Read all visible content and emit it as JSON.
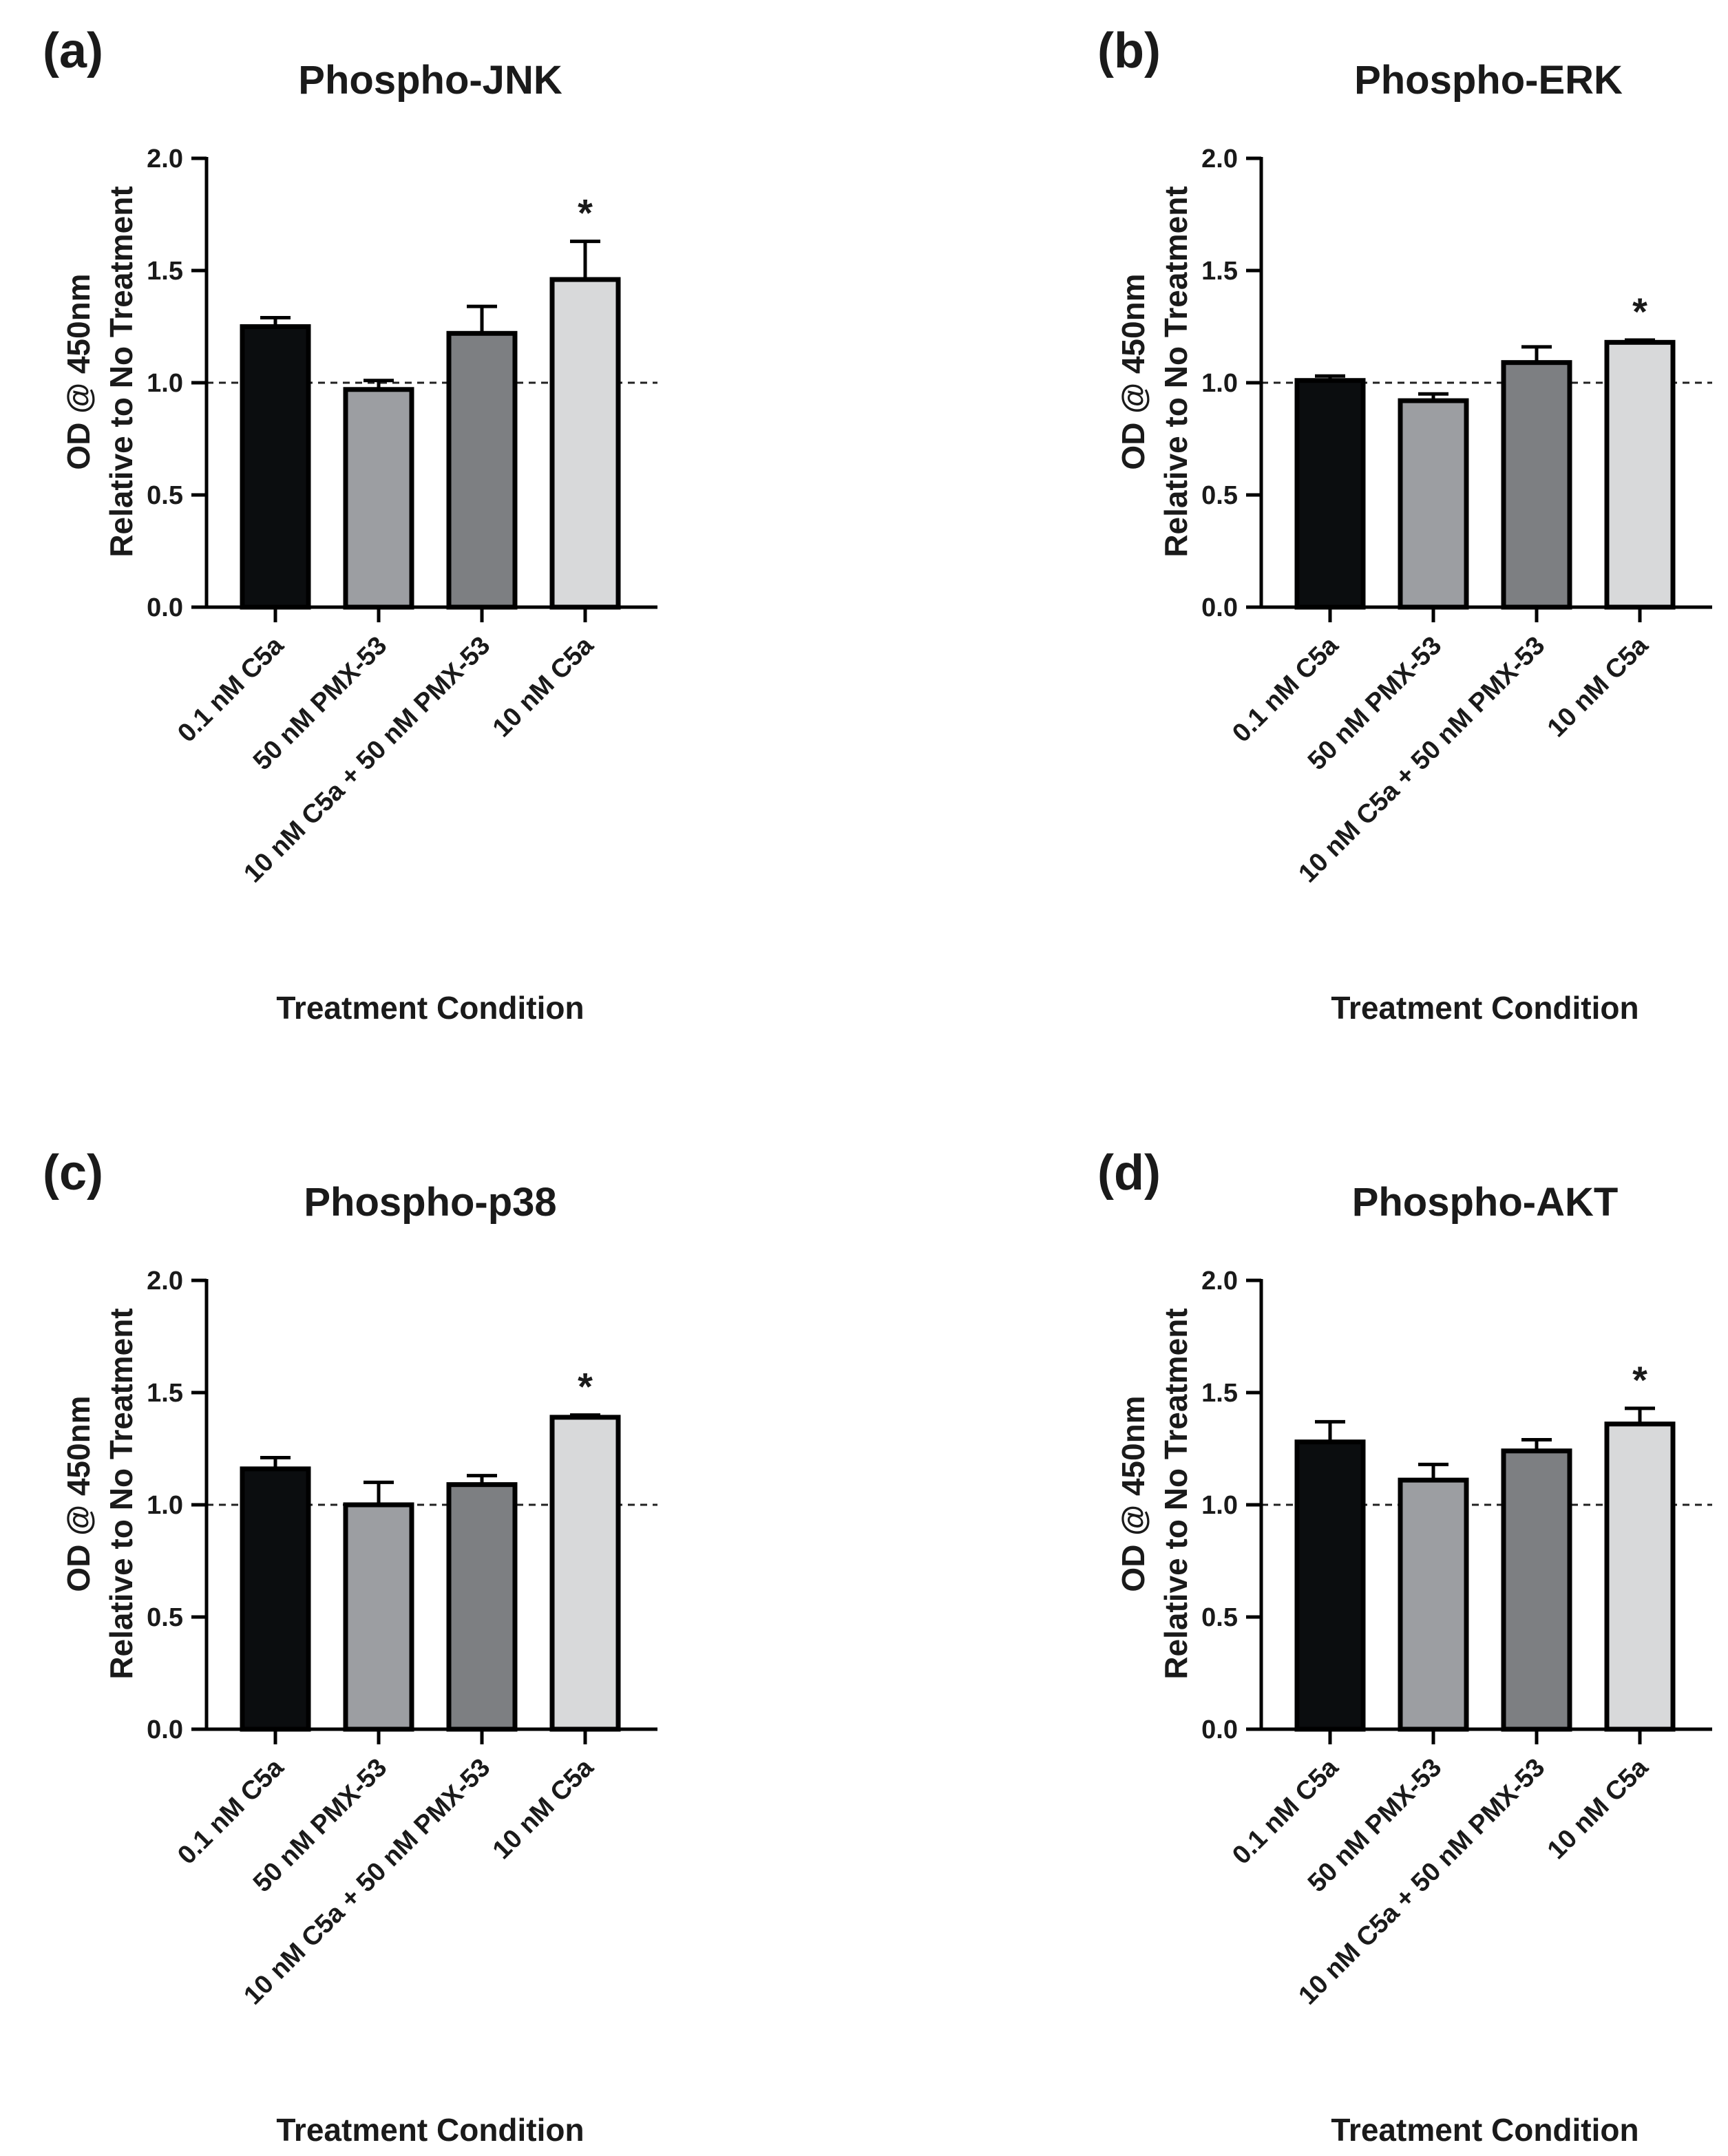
{
  "figure": {
    "panels": [
      {
        "letter": "(a)"
      },
      {
        "letter": "(b)"
      },
      {
        "letter": "(c)"
      },
      {
        "letter": "(d)"
      }
    ]
  },
  "chart_data": [
    {
      "type": "bar",
      "title": "Phospho-JNK",
      "xlabel": "Treatment Condition",
      "ylabel": [
        "OD @ 450nm",
        "Relative to No Treatment"
      ],
      "ylim": [
        0,
        2.0
      ],
      "yticks": [
        "0.0",
        "0.5",
        "1.0",
        "1.5",
        "2.0"
      ],
      "reference_line": 1.0,
      "categories": [
        "0.1 nM C5a",
        "50 nM PMX-53",
        "10 nM C5a + 50 nM PMX-53",
        "10 nM C5a"
      ],
      "values": [
        1.25,
        0.97,
        1.22,
        1.46
      ],
      "errors": [
        0.04,
        0.04,
        0.12,
        0.17
      ],
      "significance": [
        "",
        "",
        "",
        "*"
      ],
      "colors": [
        "#0b0d0f",
        "#9c9ea2",
        "#7d7f82",
        "#d8d9da"
      ]
    },
    {
      "type": "bar",
      "title": "Phospho-ERK",
      "xlabel": "Treatment Condition",
      "ylabel": [
        "OD @ 450nm",
        "Relative to No Treatment"
      ],
      "ylim": [
        0,
        2.0
      ],
      "yticks": [
        "0.0",
        "0.5",
        "1.0",
        "1.5",
        "2.0"
      ],
      "reference_line": 1.0,
      "categories": [
        "0.1 nM C5a",
        "50 nM PMX-53",
        "10 nM C5a + 50 nM PMX-53",
        "10 nM C5a"
      ],
      "values": [
        1.01,
        0.92,
        1.09,
        1.18
      ],
      "errors": [
        0.02,
        0.03,
        0.07,
        0.01
      ],
      "significance": [
        "",
        "",
        "",
        "*"
      ],
      "colors": [
        "#0b0d0f",
        "#9c9ea2",
        "#7d7f82",
        "#d8d9da"
      ]
    },
    {
      "type": "bar",
      "title": "Phospho-p38",
      "xlabel": "Treatment Condition",
      "ylabel": [
        "OD @ 450nm",
        "Relative to No Treatment"
      ],
      "ylim": [
        0,
        2.0
      ],
      "yticks": [
        "0.0",
        "0.5",
        "1.0",
        "1.5",
        "2.0"
      ],
      "reference_line": 1.0,
      "categories": [
        "0.1 nM C5a",
        "50 nM PMX-53",
        "10 nM C5a + 50 nM PMX-53",
        "10 nM C5a"
      ],
      "values": [
        1.16,
        1.0,
        1.09,
        1.39
      ],
      "errors": [
        0.05,
        0.1,
        0.04,
        0.01
      ],
      "significance": [
        "",
        "",
        "",
        "*"
      ],
      "colors": [
        "#0b0d0f",
        "#9c9ea2",
        "#7d7f82",
        "#d8d9da"
      ]
    },
    {
      "type": "bar",
      "title": "Phospho-AKT",
      "xlabel": "Treatment Condition",
      "ylabel": [
        "OD @ 450nm",
        "Relative to No Treatment"
      ],
      "ylim": [
        0,
        2.0
      ],
      "yticks": [
        "0.0",
        "0.5",
        "1.0",
        "1.5",
        "2.0"
      ],
      "reference_line": 1.0,
      "categories": [
        "0.1 nM C5a",
        "50 nM PMX-53",
        "10 nM C5a + 50 nM PMX-53",
        "10 nM C5a"
      ],
      "values": [
        1.28,
        1.11,
        1.24,
        1.36
      ],
      "errors": [
        0.09,
        0.07,
        0.05,
        0.07
      ],
      "significance": [
        "",
        "",
        "",
        "*"
      ],
      "colors": [
        "#0b0d0f",
        "#9c9ea2",
        "#7d7f82",
        "#d8d9da"
      ]
    }
  ]
}
